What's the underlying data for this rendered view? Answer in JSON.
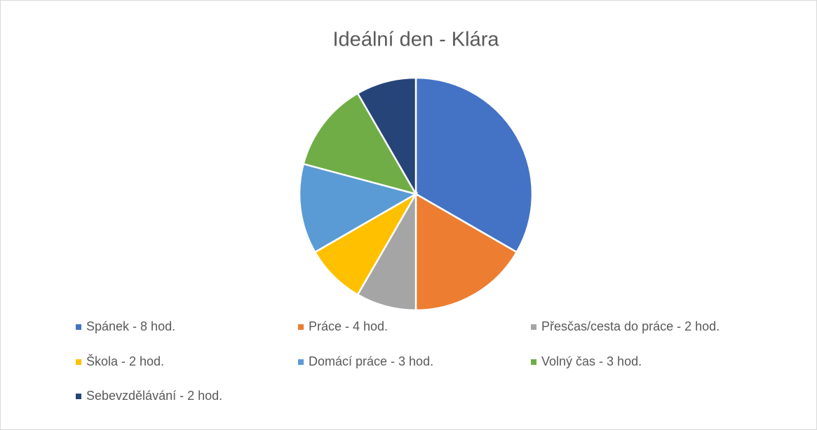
{
  "chart_data": {
    "type": "pie",
    "title": "Ideální den - Klára",
    "categories": [
      "Spánek - 8 hod.",
      "Práce - 4 hod.",
      "Přesčas/cesta do práce - 2 hod.",
      "Škola - 2 hod.",
      "Domácí práce - 3 hod.",
      "Volný čas - 3 hod.",
      "Sebevzdělávání - 2 hod."
    ],
    "values": [
      8,
      4,
      2,
      2,
      3,
      3,
      2
    ],
    "colors": [
      "#4472c4",
      "#ed7d31",
      "#a5a5a5",
      "#ffc000",
      "#5b9bd5",
      "#70ad47",
      "#264478"
    ],
    "legend": "bottom"
  }
}
